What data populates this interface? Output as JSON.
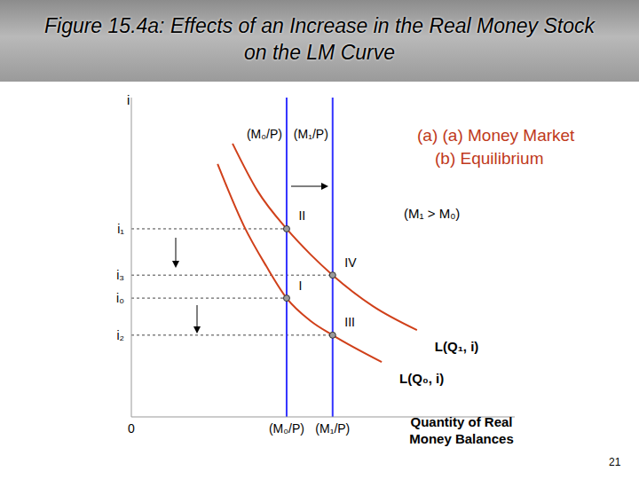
{
  "chart_data": {
    "type": "line",
    "title": "Figure 15.4a: Effects of an Increase in the Real Money Stock on the LM Curve",
    "panel_label": [
      "(a) (a)  Money Market",
      "(b) Equilibrium"
    ],
    "annotation": "(M₁ > M₀)",
    "x_label": "Quantity of Real Money Balances",
    "y_label": "i",
    "xlim": [
      0,
      10
    ],
    "ylim": [
      0,
      10
    ],
    "xticks": [
      0,
      {
        "value": 4.05,
        "label": "(M₀/P)"
      },
      {
        "value": 5.25,
        "label": "(M₁/P)"
      }
    ],
    "yticks": [
      {
        "value": 5.89,
        "label": "i₁"
      },
      {
        "value": 4.44,
        "label": "i₃"
      },
      {
        "value": 3.72,
        "label": "i₀"
      },
      {
        "value": 2.56,
        "label": "i₂"
      }
    ],
    "supply": [
      {
        "label": "(M₀/P)",
        "x": 4.05,
        "color": "#3333ff"
      },
      {
        "label": "(M₁/P)",
        "x": 5.25,
        "color": "#3333ff"
      }
    ],
    "series": [
      {
        "name": "L(Q₁, i)",
        "color": "#d0401a",
        "x": [
          2.64,
          3.29,
          4.05,
          4.68,
          5.25,
          6.3,
          7.45
        ],
        "values": [
          8.56,
          7.08,
          5.89,
          5.08,
          4.44,
          3.47,
          2.72
        ]
      },
      {
        "name": "L(Q₀, i)",
        "color": "#d0401a",
        "x": [
          2.25,
          2.94,
          3.52,
          4.05,
          4.68,
          5.25,
          6.53
        ],
        "values": [
          7.92,
          5.97,
          4.72,
          3.72,
          3.0,
          2.56,
          1.72
        ]
      }
    ],
    "points": [
      {
        "label": "I",
        "x": 4.05,
        "y": 3.72
      },
      {
        "label": "II",
        "x": 4.05,
        "y": 5.89
      },
      {
        "label": "III",
        "x": 5.25,
        "y": 2.56
      },
      {
        "label": "IV",
        "x": 5.25,
        "y": 4.44
      }
    ]
  },
  "page": "21"
}
